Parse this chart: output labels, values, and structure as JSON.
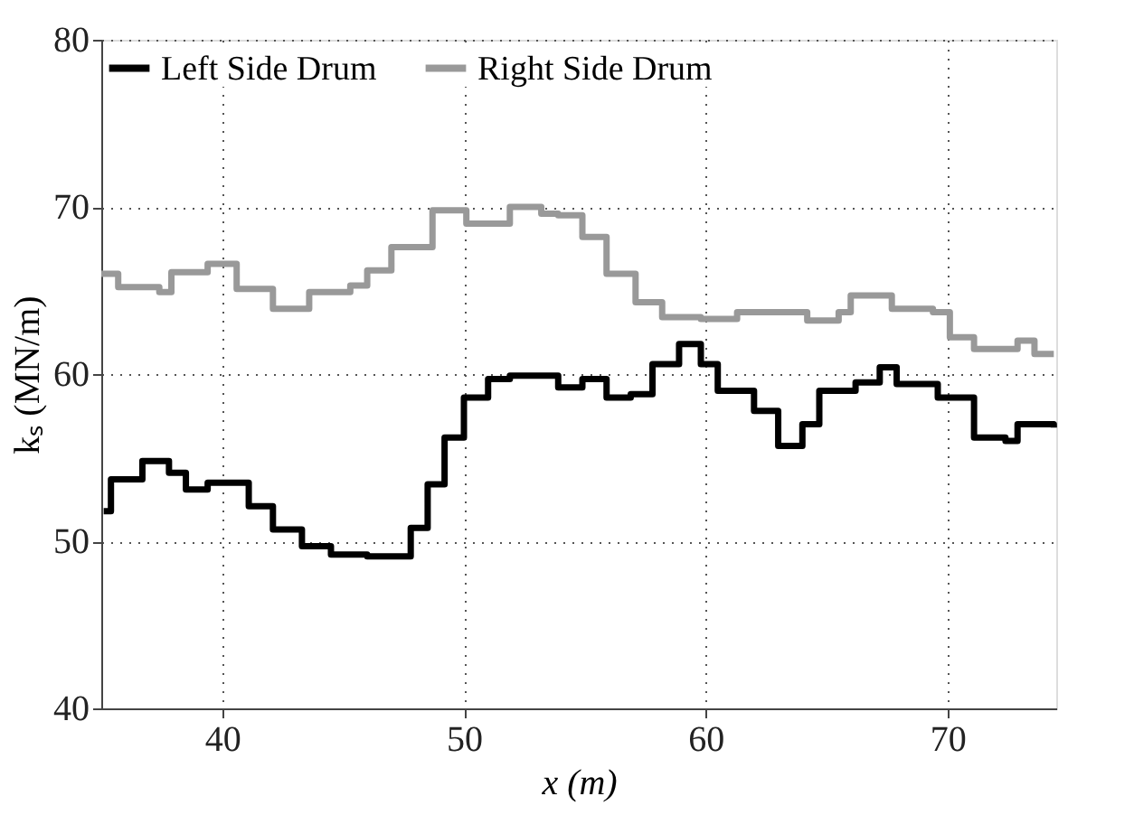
{
  "chart_data": {
    "type": "step",
    "xlabel": "x (m)",
    "ylabel": "kₛ (MN/m)",
    "xlim": [
      35,
      74.5
    ],
    "xticks": [
      40,
      50,
      60,
      70
    ],
    "ylim": [
      40,
      80
    ],
    "yticks": [
      40,
      50,
      60,
      70,
      80
    ],
    "grid": true,
    "legend": "top left",
    "line_style": "solid",
    "series": [
      {
        "name": "Left Side Drum",
        "color": "#000000",
        "x": [
          35.1,
          35.4,
          36.7,
          37.8,
          38.5,
          39.4,
          40.5,
          41.1,
          42.1,
          43.3,
          44.5,
          46.0,
          47.3,
          47.8,
          48.5,
          49.2,
          50.0,
          51.0,
          51.9,
          53.9,
          54.9,
          55.9,
          56.9,
          57.8,
          58.9,
          59.8,
          60.5,
          62.0,
          63.0,
          64.0,
          64.7,
          66.2,
          67.2,
          67.9,
          69.6,
          71.1,
          72.4,
          72.9,
          74.4
        ],
        "values": [
          51.8,
          53.7,
          54.8,
          54.1,
          53.1,
          53.5,
          53.5,
          52.1,
          50.7,
          49.7,
          49.2,
          49.1,
          49.1,
          50.8,
          53.4,
          56.2,
          58.6,
          59.7,
          59.9,
          59.2,
          59.7,
          58.6,
          58.8,
          60.6,
          61.8,
          60.6,
          59.0,
          57.8,
          55.7,
          57.0,
          59.0,
          59.5,
          60.4,
          59.4,
          58.6,
          56.2,
          56.0,
          57.0,
          56.8
        ]
      },
      {
        "name": "Right Side Drum",
        "color": "#999999",
        "x": [
          35.0,
          35.7,
          37.4,
          37.9,
          39.4,
          40.6,
          42.1,
          43.6,
          45.3,
          46.0,
          47.0,
          48.7,
          50.1,
          51.9,
          53.2,
          53.9,
          54.9,
          55.9,
          57.1,
          58.2,
          59.8,
          61.3,
          64.2,
          65.5,
          66.0,
          67.7,
          69.4,
          70.1,
          71.1,
          72.9,
          73.6,
          74.4
        ],
        "values": [
          66.0,
          65.2,
          64.9,
          66.1,
          66.6,
          65.1,
          63.9,
          64.9,
          65.3,
          66.2,
          67.6,
          69.8,
          69.0,
          70.0,
          69.6,
          69.5,
          68.2,
          66.0,
          64.3,
          63.4,
          63.3,
          63.7,
          63.2,
          63.7,
          64.7,
          63.9,
          63.7,
          62.2,
          61.5,
          62.0,
          61.2,
          61.2
        ]
      }
    ]
  }
}
